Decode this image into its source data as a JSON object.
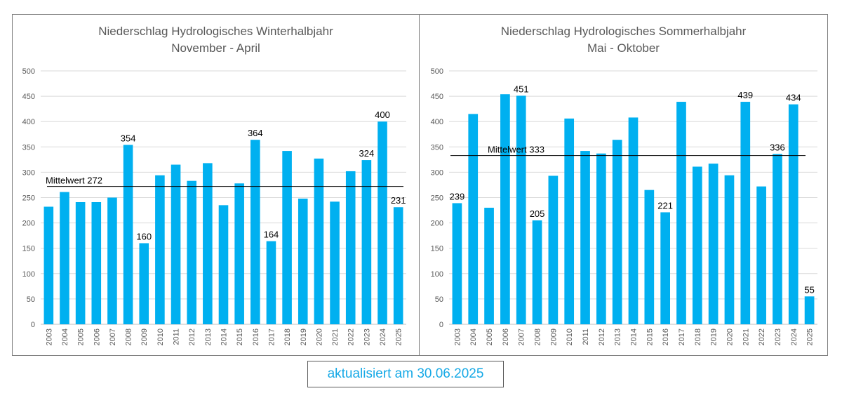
{
  "footer": {
    "update_text": "aktualisiert am 30.06.2025"
  },
  "colors": {
    "bar": "#00B0F0",
    "grid": "#D9D9D9",
    "axis_text": "#595959",
    "mean_line": "#000000",
    "border": "#7F7F7F",
    "footer_text": "#16A9E6"
  },
  "chart_data": [
    {
      "type": "bar",
      "title": "Niederschlag Hydrologisches Winterhalbjahr",
      "subtitle": "November - April",
      "categories": [
        "2003",
        "2004",
        "2005",
        "2006",
        "2007",
        "2008",
        "2009",
        "2010",
        "2011",
        "2012",
        "2013",
        "2014",
        "2015",
        "2016",
        "2017",
        "2018",
        "2019",
        "2020",
        "2021",
        "2022",
        "2023",
        "2024",
        "2025"
      ],
      "values": [
        232,
        261,
        241,
        241,
        250,
        354,
        160,
        294,
        315,
        283,
        318,
        235,
        278,
        364,
        164,
        342,
        248,
        327,
        242,
        302,
        324,
        400,
        231
      ],
      "data_labels": {
        "5": "354",
        "6": "160",
        "13": "364",
        "14": "164",
        "20": "324",
        "21": "400",
        "22": "231"
      },
      "yticks": [
        0,
        50,
        100,
        150,
        200,
        250,
        300,
        350,
        400,
        450,
        500
      ],
      "ylim": [
        0,
        500
      ],
      "mean": {
        "label": "Mittelwert 272",
        "value": 272
      },
      "grid": true
    },
    {
      "type": "bar",
      "title": "Niederschlag Hydrologisches Sommerhalbjahr",
      "subtitle": "Mai - Oktober",
      "categories": [
        "2003",
        "2004",
        "2005",
        "2006",
        "2007",
        "2008",
        "2009",
        "2010",
        "2011",
        "2012",
        "2013",
        "2014",
        "2015",
        "2016",
        "2017",
        "2018",
        "2019",
        "2020",
        "2021",
        "2022",
        "2023",
        "2024",
        "2025"
      ],
      "values": [
        239,
        415,
        230,
        454,
        451,
        205,
        293,
        406,
        342,
        337,
        364,
        408,
        265,
        221,
        439,
        311,
        317,
        294,
        439,
        272,
        336,
        434,
        55
      ],
      "data_labels": {
        "0": "239",
        "4": "451",
        "5": "205",
        "13": "221",
        "18": "439",
        "20": "336",
        "21": "434",
        "22": "55"
      },
      "yticks": [
        0,
        50,
        100,
        150,
        200,
        250,
        300,
        350,
        400,
        450,
        500
      ],
      "ylim": [
        0,
        500
      ],
      "mean": {
        "label": "Mittelwert 333",
        "value": 333
      },
      "grid": true
    }
  ]
}
